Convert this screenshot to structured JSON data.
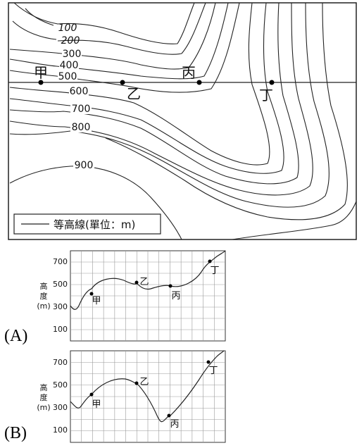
{
  "map": {
    "contour_labels": [
      "100",
      "200",
      "300",
      "400",
      "500",
      "600",
      "700",
      "800",
      "900"
    ],
    "point_labels": [
      "甲",
      "乙",
      "丙",
      "丁"
    ],
    "legend_text": "等高線(單位：m)"
  },
  "profiles": [
    {
      "option": "(A)",
      "y_ticks": [
        "700",
        "500",
        "300",
        "100"
      ],
      "ylabel_chars": [
        "高",
        "度"
      ],
      "ylabel_unit": "(m)",
      "points": [
        {
          "label": "甲",
          "elev": 400
        },
        {
          "label": "乙",
          "elev": 500
        },
        {
          "label": "丙",
          "elev": 470
        },
        {
          "label": "丁",
          "elev": 700
        }
      ]
    },
    {
      "option": "(B)",
      "y_ticks": [
        "700",
        "500",
        "300",
        "100"
      ],
      "ylabel_chars": [
        "高",
        "度"
      ],
      "ylabel_unit": "(m)",
      "points": [
        {
          "label": "甲",
          "elev": 400
        },
        {
          "label": "乙",
          "elev": 500
        },
        {
          "label": "丙",
          "elev": 200
        },
        {
          "label": "丁",
          "elev": 700
        }
      ]
    }
  ]
}
